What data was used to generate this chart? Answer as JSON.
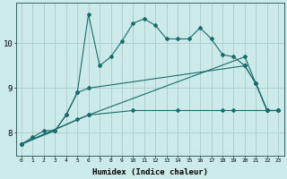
{
  "xlabel": "Humidex (Indice chaleur)",
  "background_color": "#cceaea",
  "grid_color": "#aacccc",
  "line_color": "#1a6b6b",
  "xlim": [
    -0.5,
    23.5
  ],
  "ylim": [
    7.5,
    10.9
  ],
  "yticks": [
    8,
    9,
    10
  ],
  "xticks": [
    0,
    1,
    2,
    3,
    4,
    5,
    6,
    7,
    8,
    9,
    10,
    11,
    12,
    13,
    14,
    15,
    16,
    17,
    18,
    19,
    20,
    21,
    22,
    23
  ],
  "line1_x": [
    0,
    1,
    2,
    3,
    4,
    5,
    6,
    7,
    8,
    9,
    10,
    11,
    12,
    13,
    14,
    15,
    16,
    17,
    18,
    19,
    20,
    21,
    22,
    23
  ],
  "line1_y": [
    7.75,
    7.9,
    8.05,
    8.05,
    8.4,
    8.9,
    10.65,
    9.5,
    9.7,
    10.05,
    10.45,
    10.55,
    10.4,
    10.1,
    10.1,
    10.1,
    10.35,
    10.1,
    9.75,
    9.7,
    9.5,
    9.1,
    8.5,
    8.5
  ],
  "line2_x": [
    0,
    3,
    4,
    5,
    6,
    20,
    21,
    22,
    23
  ],
  "line2_y": [
    7.75,
    8.05,
    8.4,
    8.9,
    9.0,
    9.5,
    9.1,
    8.5,
    8.5
  ],
  "line3_x": [
    0,
    5,
    6,
    20,
    21,
    22,
    23
  ],
  "line3_y": [
    7.75,
    8.3,
    8.4,
    9.7,
    9.1,
    8.5,
    8.5
  ],
  "line4_x": [
    0,
    6,
    10,
    14,
    18,
    19,
    22,
    23
  ],
  "line4_y": [
    7.75,
    8.4,
    8.5,
    8.5,
    8.5,
    8.5,
    8.5,
    8.5
  ]
}
